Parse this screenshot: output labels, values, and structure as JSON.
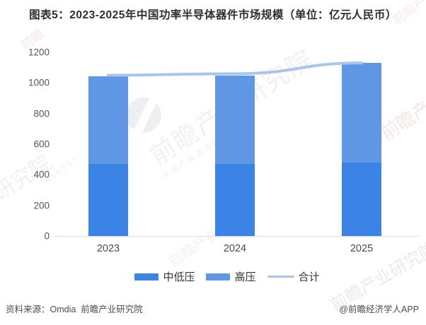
{
  "title": "图表5：2023-2025年中国功率半导体器件市场规模（单位：亿元人民币）",
  "chart_data": {
    "type": "bar",
    "stacked": true,
    "categories": [
      "2023",
      "2024",
      "2025"
    ],
    "series": [
      {
        "name": "中低压",
        "kind": "bar",
        "color": "#3b84e5",
        "values": [
          470,
          470,
          480
        ]
      },
      {
        "name": "高压",
        "kind": "bar",
        "color": "#5f97e4",
        "values": [
          575,
          580,
          650
        ]
      },
      {
        "name": "合计",
        "kind": "line",
        "color": "#a9c5ea",
        "values": [
          1050,
          1060,
          1130
        ]
      }
    ],
    "xlabel": "",
    "ylabel": "",
    "unit": "亿元人民币",
    "ylim": [
      0,
      1200
    ],
    "yticks": [
      0,
      200,
      400,
      600,
      800,
      1000,
      1200
    ],
    "grid": false,
    "legend_position": "bottom"
  },
  "footer": {
    "source": "资料来源：Omdia  前瞻产业研究院",
    "credit": "@前瞻经济学人APP"
  },
  "watermarks": {
    "brand": "前瞻产业研究院",
    "brand_sub": "中国产业咨询领导者",
    "brand_short": "前瞻",
    "fragment_left": "研究院",
    "fragment_bottom": "前瞻产业",
    "digits": "839599"
  }
}
